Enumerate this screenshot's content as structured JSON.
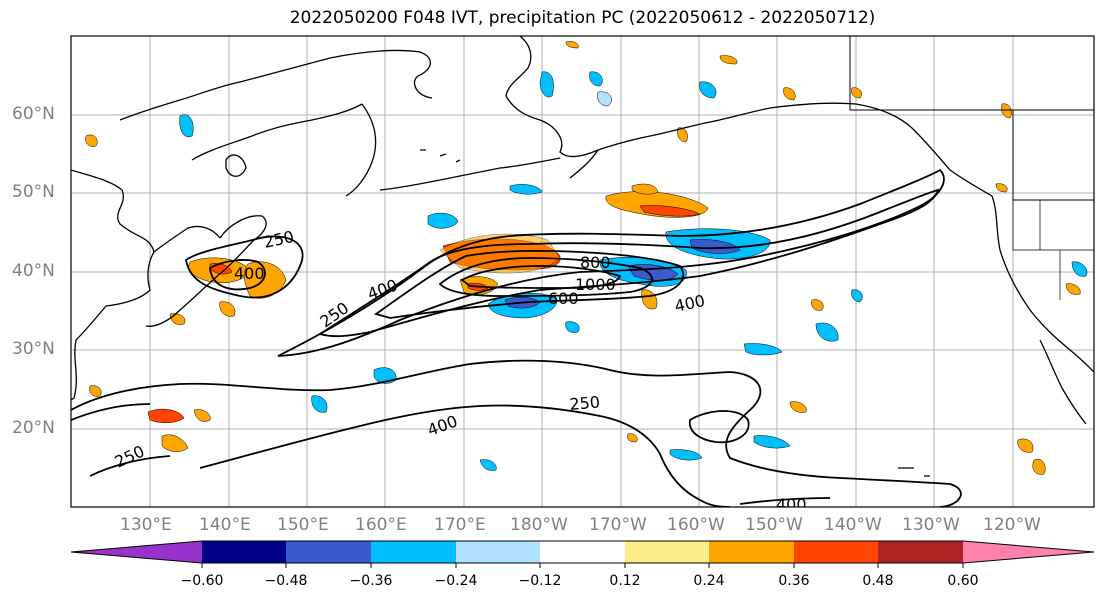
{
  "title": "2022050200 F048 IVT, precipitation PC (2022050612 - 2022050712)",
  "map": {
    "lon_labels": [
      "130°E",
      "140°E",
      "150°E",
      "160°E",
      "170°E",
      "180°W",
      "170°W",
      "160°W",
      "150°W",
      "140°W",
      "130°W",
      "120°W"
    ],
    "lat_labels": [
      "60°N",
      "50°N",
      "40°N",
      "30°N",
      "20°N"
    ],
    "contour_labels": [
      "250",
      "400",
      "250",
      "400",
      "800",
      "1000",
      "600",
      "400",
      "250",
      "400",
      "250",
      "400"
    ]
  },
  "colorbar": {
    "ticks": [
      "−0.60",
      "−0.48",
      "−0.36",
      "−0.24",
      "−0.12",
      "0.12",
      "0.24",
      "0.36",
      "0.48",
      "0.60"
    ],
    "colors": [
      "#9a32cd",
      "#000088",
      "#3a5bcc",
      "#00bfff",
      "#b0e2ff",
      "#ffffff",
      "#ffec8b",
      "#ffa500",
      "#ff4500",
      "#b22222",
      "#ff82ab"
    ]
  }
}
